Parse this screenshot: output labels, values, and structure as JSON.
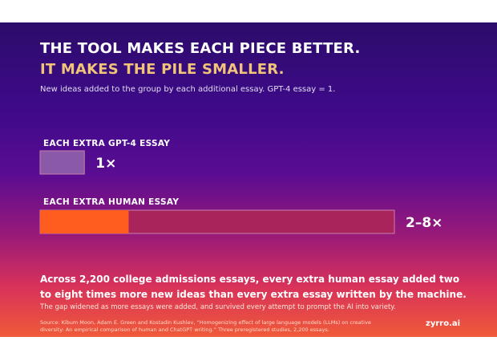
{
  "header": {
    "title_line1": "THE TOOL MAKES EACH PIECE BETTER.",
    "title_line2": "IT MAKES THE PILE SMALLER.",
    "subtitle": "New ideas added to the group by each additional essay. GPT-4 essay = 1."
  },
  "chart_data": {
    "type": "bar",
    "orientation": "horizontal",
    "categories": [
      "EACH EXTRA GPT-4 ESSAY",
      "EACH EXTRA HUMAN ESSAY"
    ],
    "value_labels": [
      "1×",
      "2–8×"
    ],
    "bars": [
      {
        "low": 1,
        "high": 1
      },
      {
        "low": 2,
        "high": 8
      }
    ],
    "xlim": [
      0,
      8
    ],
    "colors": {
      "gpt_bar": "#8a5aa8",
      "human_range": "#a8245a",
      "human_solid": "#ff5c20",
      "outline": "#c77fae"
    }
  },
  "footer": {
    "headline": "Across 2,200 college admissions essays, every extra human essay added two to eight times more new ideas than every extra essay written by the machine.",
    "note": "The gap widened as more essays were added, and survived every attempt to prompt the AI into variety.",
    "source": "Source: Kibum Moon, Adam E. Green and Kostadin Kushlev, “Homogenizing effect of large language models (LLMs) on creative diversity: An empirical comparison of human and ChatGPT writing.” Three preregistered studies, 2,200 essays.",
    "brand": "zyrro.ai"
  }
}
